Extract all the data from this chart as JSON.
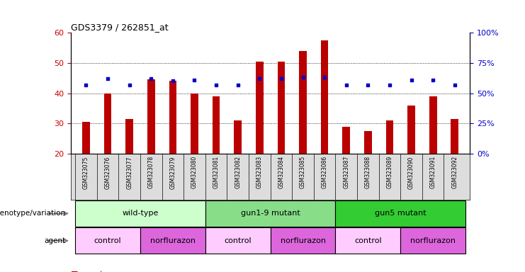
{
  "title": "GDS3379 / 262851_at",
  "samples": [
    "GSM323075",
    "GSM323076",
    "GSM323077",
    "GSM323078",
    "GSM323079",
    "GSM323080",
    "GSM323081",
    "GSM323082",
    "GSM323083",
    "GSM323084",
    "GSM323085",
    "GSM323086",
    "GSM323087",
    "GSM323088",
    "GSM323089",
    "GSM323090",
    "GSM323091",
    "GSM323092"
  ],
  "counts": [
    30.5,
    40.0,
    31.5,
    44.5,
    44.0,
    40.0,
    39.0,
    31.0,
    50.5,
    50.5,
    54.0,
    57.5,
    29.0,
    27.5,
    31.0,
    36.0,
    39.0,
    31.5
  ],
  "percentile_ranks": [
    57,
    62,
    57,
    62,
    60,
    61,
    57,
    57,
    62,
    62,
    63,
    63,
    57,
    57,
    57,
    61,
    61,
    57
  ],
  "y_min": 20,
  "y_max": 60,
  "y_ticks": [
    20,
    30,
    40,
    50,
    60
  ],
  "right_y_ticks": [
    0,
    25,
    50,
    75,
    100
  ],
  "right_y_labels": [
    "0%",
    "25%",
    "50%",
    "75%",
    "100%"
  ],
  "bar_color": "#bb0000",
  "dot_color": "#0000cc",
  "bar_width": 0.35,
  "genotype_groups": [
    {
      "label": "wild-type",
      "start": 0,
      "end": 5,
      "color": "#ccffcc"
    },
    {
      "label": "gun1-9 mutant",
      "start": 6,
      "end": 11,
      "color": "#88dd88"
    },
    {
      "label": "gun5 mutant",
      "start": 12,
      "end": 17,
      "color": "#33cc33"
    }
  ],
  "agent_groups": [
    {
      "label": "control",
      "start": 0,
      "end": 2,
      "color": "#ffccff"
    },
    {
      "label": "norflurazon",
      "start": 3,
      "end": 5,
      "color": "#dd66dd"
    },
    {
      "label": "control",
      "start": 6,
      "end": 8,
      "color": "#ffccff"
    },
    {
      "label": "norflurazon",
      "start": 9,
      "end": 11,
      "color": "#dd66dd"
    },
    {
      "label": "control",
      "start": 12,
      "end": 14,
      "color": "#ffccff"
    },
    {
      "label": "norflurazon",
      "start": 15,
      "end": 17,
      "color": "#dd66dd"
    }
  ],
  "tick_label_color_left": "#cc0000",
  "tick_label_color_right": "#0000cc"
}
